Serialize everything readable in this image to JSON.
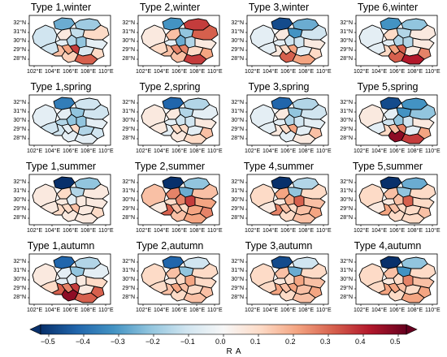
{
  "panels": [
    {
      "title": "Type 1,winter",
      "values": [
        -0.1,
        -0.25,
        -0.18,
        0.05,
        -0.12,
        0.1,
        -0.05,
        -0.15,
        -0.1,
        0.15,
        -0.2,
        -0.05,
        0.2,
        0.35,
        -0.08,
        0.1,
        0.12,
        0.3
      ]
    },
    {
      "title": "Type 2,winter",
      "values": [
        0.05,
        -0.3,
        0.35,
        0.15,
        -0.2,
        0.3,
        -0.05,
        -0.25,
        0.1,
        0.15,
        -0.15,
        0.05,
        0.25,
        0.25,
        0.1,
        0.2,
        0.15,
        0.35
      ]
    },
    {
      "title": "Type 3,winter",
      "values": [
        -0.05,
        -0.45,
        -0.25,
        0.05,
        -0.3,
        -0.1,
        -0.05,
        -0.1,
        -0.05,
        0.05,
        -0.1,
        0.05,
        0.1,
        0.2,
        -0.05,
        0.1,
        0.3,
        0.2
      ]
    },
    {
      "title": "Type 6,winter",
      "values": [
        -0.05,
        -0.3,
        -0.2,
        0.1,
        -0.15,
        0.05,
        -0.05,
        -0.15,
        -0.05,
        0.1,
        -0.15,
        0.05,
        0.2,
        0.3,
        0.05,
        0.25,
        0.3,
        0.4
      ]
    },
    {
      "title": "Type 1,spring",
      "values": [
        -0.05,
        -0.35,
        -0.1,
        -0.05,
        -0.2,
        -0.1,
        -0.15,
        -0.2,
        -0.1,
        -0.1,
        -0.2,
        -0.05,
        -0.05,
        0.1,
        -0.15,
        -0.1,
        -0.05,
        -0.05
      ]
    },
    {
      "title": "Type 2,spring",
      "values": [
        0.05,
        -0.4,
        -0.15,
        0.05,
        -0.15,
        -0.05,
        -0.05,
        -0.1,
        0.05,
        -0.05,
        -0.1,
        0.05,
        0.1,
        0.1,
        -0.05,
        0.15,
        0.05,
        0.1
      ]
    },
    {
      "title": "Type 3,spring",
      "values": [
        -0.05,
        -0.4,
        -0.15,
        0.05,
        -0.2,
        -0.1,
        -0.05,
        -0.15,
        -0.05,
        0.05,
        -0.1,
        -0.05,
        0.1,
        0.2,
        -0.05,
        0.15,
        -0.05,
        0.05
      ]
    },
    {
      "title": "Type 5,spring",
      "values": [
        0.05,
        -0.45,
        -0.3,
        -0.05,
        -0.3,
        -0.2,
        -0.1,
        -0.2,
        -0.05,
        0.1,
        -0.1,
        0.05,
        0.15,
        0.25,
        -0.05,
        0.2,
        0.45,
        0.35
      ]
    },
    {
      "title": "Type 1,summer",
      "values": [
        0.05,
        -0.55,
        -0.2,
        0.1,
        -0.15,
        0.05,
        0.05,
        -0.05,
        0.05,
        0.1,
        0.05,
        0.05,
        0.1,
        0.15,
        0.05,
        0.1,
        0.05,
        0.05
      ]
    },
    {
      "title": "Type 2,summer",
      "values": [
        0.15,
        -0.5,
        -0.2,
        0.25,
        -0.25,
        0.15,
        0.1,
        0.25,
        0.05,
        0.3,
        0.35,
        0.2,
        0.15,
        0.1,
        0.2,
        0.25,
        0.15,
        0.2
      ]
    },
    {
      "title": "Type 4,summer",
      "values": [
        0.1,
        -0.5,
        -0.15,
        0.2,
        -0.2,
        0.1,
        0.05,
        0.2,
        0.05,
        0.25,
        0.3,
        0.15,
        0.15,
        0.1,
        0.15,
        0.2,
        0.1,
        0.15
      ]
    },
    {
      "title": "Type 5,summer",
      "values": [
        0.1,
        -0.55,
        -0.25,
        0.15,
        -0.2,
        0.1,
        0.05,
        0.15,
        0.05,
        0.2,
        0.3,
        0.1,
        0.15,
        0.1,
        0.1,
        0.15,
        0.1,
        0.1
      ]
    },
    {
      "title": "Type 1,autumn",
      "values": [
        0.05,
        -0.4,
        -0.15,
        -0.05,
        -0.2,
        -0.05,
        -0.05,
        -0.05,
        0.1,
        0.3,
        0.05,
        0.1,
        0.25,
        0.35,
        0.05,
        0.3,
        0.45,
        0.3
      ]
    },
    {
      "title": "Type 2,autumn",
      "values": [
        0.1,
        -0.4,
        -0.1,
        0.15,
        -0.2,
        0.1,
        0.05,
        0.1,
        0.1,
        0.15,
        0.2,
        0.1,
        0.2,
        0.15,
        0.1,
        0.15,
        0.1,
        0.15
      ]
    },
    {
      "title": "Type 3,autumn",
      "values": [
        0.1,
        -0.45,
        -0.1,
        0.15,
        -0.25,
        0.1,
        0.05,
        0.1,
        0.1,
        0.2,
        0.2,
        0.15,
        0.15,
        0.2,
        0.15,
        0.2,
        0.1,
        0.15
      ]
    },
    {
      "title": "Type 4,autumn",
      "values": [
        0.1,
        -0.55,
        -0.2,
        0.15,
        -0.3,
        0.1,
        0.05,
        0.1,
        0.1,
        0.2,
        0.25,
        0.15,
        0.2,
        0.15,
        0.1,
        0.2,
        0.1,
        0.2
      ]
    }
  ],
  "y_tick_labels": [
    "32°N",
    "31°N",
    "30°N",
    "29°N",
    "28°N"
  ],
  "x_tick_labels": [
    "102°E",
    "104°E",
    "106°E",
    "108°E",
    "110°E"
  ],
  "colorbar": {
    "label": "R A",
    "ticks": [
      "−0.5",
      "−0.4",
      "−0.3",
      "−0.2",
      "−0.1",
      "0.0",
      "0.1",
      "0.2",
      "0.3",
      "0.4",
      "0.5"
    ],
    "min": -0.5,
    "max": 0.5,
    "extend": "both",
    "colors": [
      "#08306b",
      "#2166ac",
      "#4393c3",
      "#92c5de",
      "#d1e5f0",
      "#f7f7f7",
      "#fddbc7",
      "#f4a582",
      "#d6604d",
      "#b2182b",
      "#67001f"
    ]
  }
}
